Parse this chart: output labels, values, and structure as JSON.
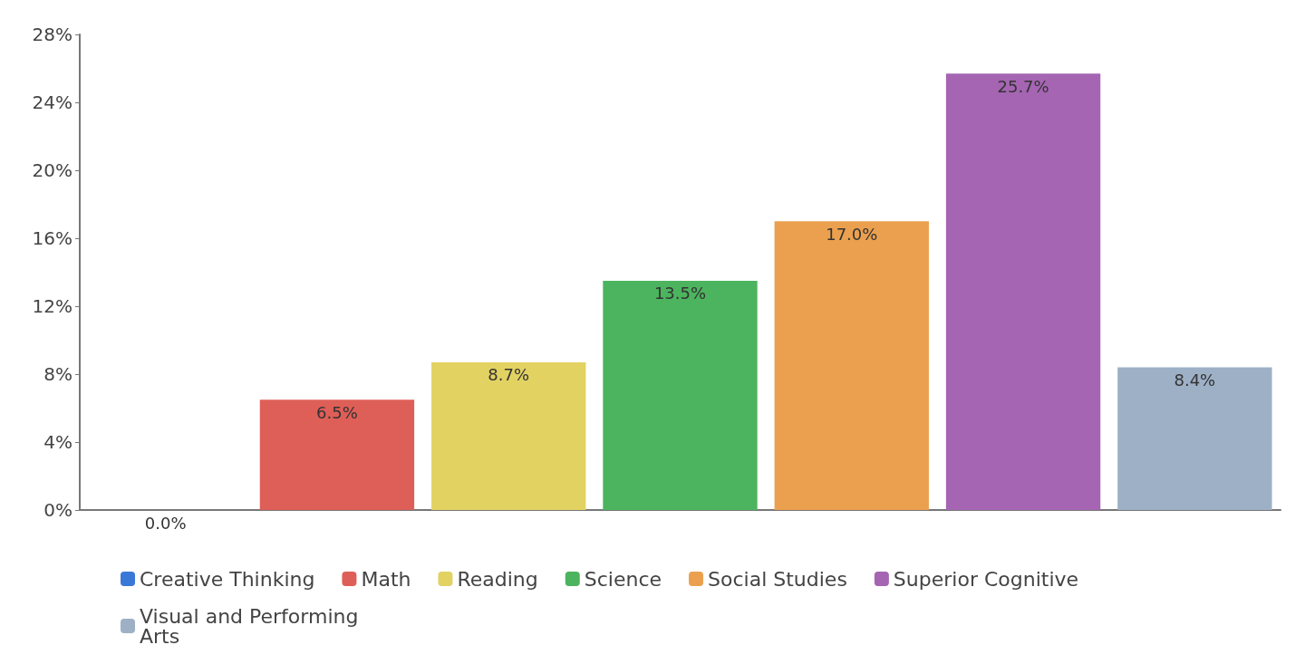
{
  "chart_data": {
    "type": "bar",
    "categories": [
      null,
      null,
      null,
      null,
      null,
      null,
      null
    ],
    "series": [
      {
        "name": "Creative Thinking",
        "color": "#3a78d8",
        "values": [
          0,
          null,
          null,
          null,
          null,
          null,
          null
        ],
        "value_labels": [
          "0.0%",
          null,
          null,
          null,
          null,
          null,
          null
        ]
      },
      {
        "name": "Math",
        "color": "#de5f57",
        "values": [
          null,
          6.5,
          null,
          null,
          null,
          null,
          null
        ],
        "value_labels": [
          null,
          "6.5%",
          null,
          null,
          null,
          null,
          null
        ]
      },
      {
        "name": "Reading",
        "color": "#e2d262",
        "values": [
          null,
          null,
          8.7,
          null,
          null,
          null,
          null
        ],
        "value_labels": [
          null,
          null,
          "8.7%",
          null,
          null,
          null,
          null
        ]
      },
      {
        "name": "Science",
        "color": "#4cb45e",
        "values": [
          null,
          null,
          null,
          13.5,
          null,
          null,
          null
        ],
        "value_labels": [
          null,
          null,
          null,
          "13.5%",
          null,
          null,
          null
        ]
      },
      {
        "name": "Social Studies",
        "color": "#eaa04f",
        "values": [
          null,
          null,
          null,
          null,
          17.0,
          null,
          null
        ],
        "value_labels": [
          null,
          null,
          null,
          null,
          "17.0%",
          null,
          null
        ]
      },
      {
        "name": "Superior Cognitive",
        "color": "#a565b3",
        "values": [
          null,
          null,
          null,
          null,
          null,
          25.7,
          null
        ],
        "value_labels": [
          null,
          null,
          null,
          null,
          null,
          "25.7%",
          null
        ]
      },
      {
        "name": "Visual and Performing Arts",
        "color": "#9db0c6",
        "values": [
          null,
          null,
          null,
          null,
          null,
          null,
          8.4
        ],
        "value_labels": [
          null,
          null,
          null,
          null,
          null,
          null,
          "8.4%"
        ]
      }
    ],
    "ylim": [
      0,
      28
    ],
    "yticks": [
      {
        "value": 0,
        "label": "0%"
      },
      {
        "value": 4,
        "label": "4%"
      },
      {
        "value": 8,
        "label": "8%"
      },
      {
        "value": 12,
        "label": "12%"
      },
      {
        "value": 16,
        "label": "16%"
      },
      {
        "value": 20,
        "label": "20%"
      },
      {
        "value": 24,
        "label": "24%"
      },
      {
        "value": 28,
        "label": "28%"
      }
    ],
    "grid": false,
    "legend": "bottom"
  }
}
